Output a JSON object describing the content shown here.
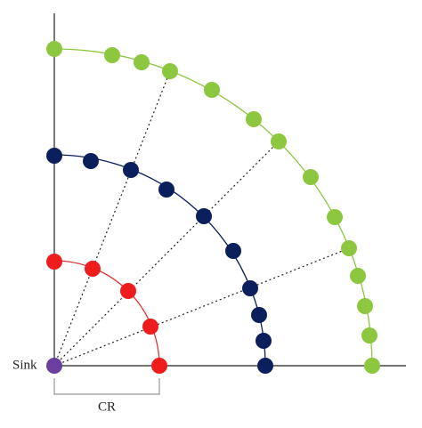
{
  "labels": {
    "sink": "Sink",
    "cr": "CR"
  }
}
